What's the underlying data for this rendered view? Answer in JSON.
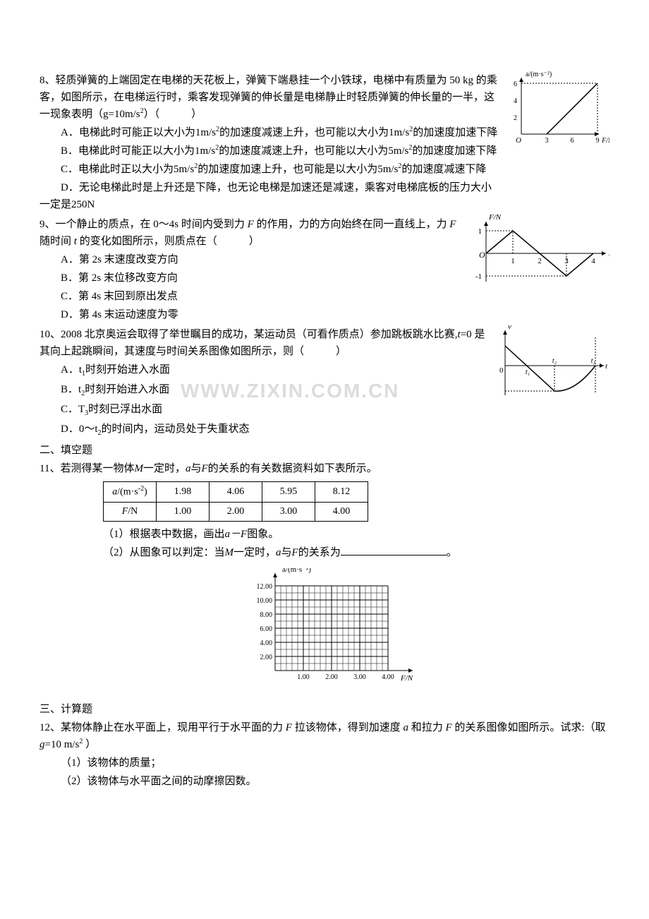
{
  "q8": {
    "stem_a": "8、轻质弹簧的上端固定在电梯的天花板上，弹簧下端悬挂一个小铁球，电梯中有质量为 50 kg 的乘客，如图所示，在电梯运行时，乘客发现弹簧的伸长量是电梯静止时轻质弹簧的伸长量的一半，这一现象表明（g=10m/s",
    "stem_b": "）（　　　）",
    "opt_a1": "A．电梯此时可能正以大小为1m/s",
    "opt_a2": "的加速度减速上升，也可能以大小为1m/s",
    "opt_a3": "的加速度加速下降",
    "opt_b1": "B．电梯此时可能正以大小为1m/s",
    "opt_b2": "的加速度减速上升，也可能以大小为5m/s",
    "opt_b3": "的加速度加速下降",
    "opt_c1": "C．电梯此时正以大小为5m/s",
    "opt_c2": "的加速度加速上升，也可能是以大小为5m/s",
    "opt_c3": "的加速度减速下降",
    "opt_d": "D．无论电梯此时是上升还是下降，也无论电梯是加速还是减速，乘客对电梯底板的压力大小一定是250N",
    "fig": {
      "ylabel": "a/(m·s⁻²)",
      "xlabel": "F/N",
      "yticks": [
        2,
        4,
        6
      ],
      "xticks": [
        3,
        6,
        9
      ],
      "line_start_x": 3,
      "line_start_y": 0,
      "line_end_x": 9,
      "line_end_y": 6,
      "axis_color": "#000",
      "grid_dash": "2,2"
    }
  },
  "q9": {
    "stem_a": "9、一个静止的质点，在 0～4s 时间内受到力 ",
    "stem_b": " 的作用，力的方向始终在同一直线上，力 ",
    "stem_c": " 随时间 ",
    "stem_d": " 的变化如图所示，则质点在（　　　）",
    "f_var": "F",
    "t_var": "t",
    "opt_a": "A．第 2s 末速度改变方向",
    "opt_b": "B．第 2s 末位移改变方向",
    "opt_c": "C．第 4s 末回到原出发点",
    "opt_d": "D．第 4s 末运动速度为零",
    "fig": {
      "ylabel": "F/N",
      "xlabel": "t/s",
      "ymax": 1,
      "ymin": -1,
      "xticks": [
        1,
        2,
        3,
        4
      ],
      "points": [
        [
          0,
          0
        ],
        [
          1,
          1
        ],
        [
          2,
          0
        ],
        [
          3,
          -1
        ],
        [
          4,
          0
        ]
      ],
      "grid_dash": "2,2"
    }
  },
  "q10": {
    "stem_a": "10、2008 北京奥运会取得了举世瞩目的成功，某运动员（可看作质点）参加跳板跳水比赛,",
    "stem_b": "=0 是其向上起跳瞬间，其速度与时间关系图像如图所示，则（　　　）",
    "t_var": "t",
    "opt_a1": "A．t",
    "opt_a2": "时刻开始进入水面",
    "sub_a": "1",
    "opt_b1": "B．t",
    "opt_b2": "时刻开始进入水面",
    "sub_b": "2",
    "opt_c1": "C．T",
    "opt_c2": "时刻已浮出水面",
    "sub_c": "3",
    "opt_d1": "D．0～t",
    "opt_d2": "的时间内，运动员处于失重状态",
    "sub_d": "2",
    "watermark": "WWW.ZIXIN.COM.CN",
    "fig": {
      "xlabel": "t",
      "ylabel": "v",
      "xticks": [
        "t₁",
        "t₂",
        "t₃"
      ],
      "grid_dash": "2,2"
    }
  },
  "section2": "二、填空题",
  "q11": {
    "stem_a": "11、若测得某一物体",
    "stem_b": "一定时，",
    "stem_c": "与",
    "stem_d": "的关系的有关数据资料如下表所示。",
    "m_var": "M",
    "a_var": "a",
    "f_var": "F",
    "table": {
      "header_a": "a/(m·s⁻²)",
      "header_f": "F/N",
      "a_values": [
        "1.98",
        "4.06",
        "5.95",
        "8.12"
      ],
      "f_values": [
        "1.00",
        "2.00",
        "3.00",
        "4.00"
      ]
    },
    "sub1_a": "（1）根据表中数据，画出",
    "sub1_b": "图象。",
    "af_label": "a－F",
    "sub2_a": "（2）从图象可以判定：当",
    "sub2_b": "一定时，",
    "sub2_c": "的关系为",
    "period": "。",
    "grid": {
      "ylabel": "a/(m·s⁻²)",
      "xlabel": "F/N",
      "yticks": [
        "2.00",
        "4.00",
        "6.00",
        "8.00",
        "10.00",
        "12.00"
      ],
      "xticks": [
        "1.00",
        "2.00",
        "3.00",
        "4.00"
      ],
      "grid_color": "#000",
      "bg": "#fff"
    }
  },
  "section3": "三、计算题",
  "q12": {
    "stem_a": "12、某物体静止在水平面上，现用平行于水平面的力 ",
    "stem_b": " 拉该物体，得到加速度 ",
    "stem_c": " 和拉力 ",
    "stem_d": " 的关系图像如图所示。试求:（取 ",
    "stem_e": "=10 m/s",
    "stem_f": " ）",
    "f_var": "F",
    "a_var": "a",
    "g_var": "g",
    "sub1": "（1）该物体的质量；",
    "sub2": "（2）该物体与水平面之间的动摩擦因数。"
  }
}
